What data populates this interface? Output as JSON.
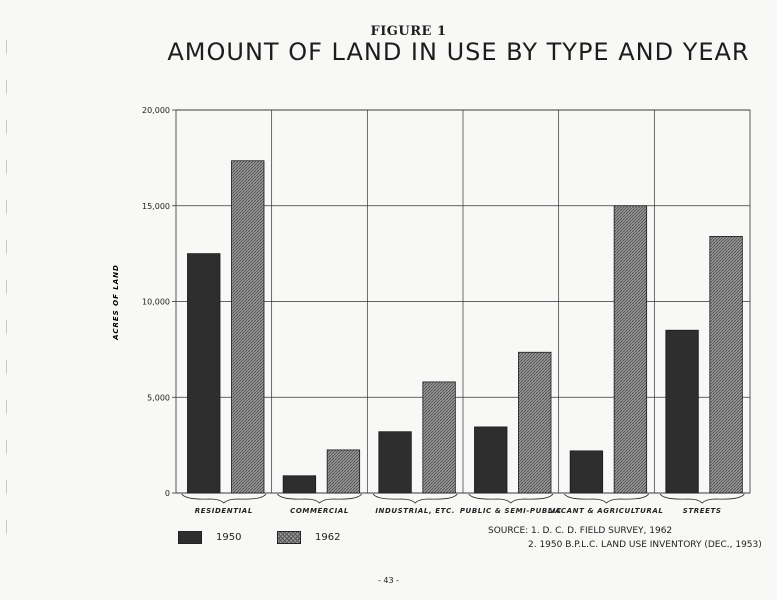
{
  "header": {
    "figure_label": "FIGURE 1",
    "title": "AMOUNT OF LAND IN USE BY TYPE AND YEAR"
  },
  "legend": [
    {
      "name": "1950",
      "style": "solid"
    },
    {
      "name": "1962",
      "style": "hatched"
    }
  ],
  "source": {
    "line1": "SOURCE:  1. D. C. D. FIELD SURVEY, 1962",
    "line2": "2. 1950 B.P.L.C. LAND USE INVENTORY (DEC., 1953)"
  },
  "page_number": "- 43 -",
  "colors": {
    "bar_1950": "#2e2e2e",
    "bar_1962_hatch": "#555555",
    "bar_1962_bg": "#9a9a9a",
    "grid": "#333333"
  },
  "chart_data": {
    "type": "bar",
    "title": "AMOUNT OF LAND IN USE BY TYPE AND YEAR",
    "ylabel": "ACRES OF LAND",
    "xlabel": "",
    "categories": [
      "RESIDENTIAL",
      "COMMERCIAL",
      "INDUSTRIAL, ETC.",
      "PUBLIC & SEMI-PUBLIC",
      "VACANT & AGRICULTURAL",
      "STREETS"
    ],
    "series": [
      {
        "name": "1950",
        "values": [
          12500,
          900,
          3200,
          3450,
          2200,
          8500
        ]
      },
      {
        "name": "1962",
        "values": [
          17350,
          2250,
          5800,
          7350,
          15000,
          13400
        ]
      }
    ],
    "ylim": [
      0,
      20000
    ],
    "yticks": [
      0,
      5000,
      10000,
      15000,
      20000
    ],
    "ytick_labels": [
      "0",
      "5,000",
      "10,000",
      "15,000",
      "20,000"
    ],
    "grid": true,
    "legend_position": "bottom-left"
  }
}
